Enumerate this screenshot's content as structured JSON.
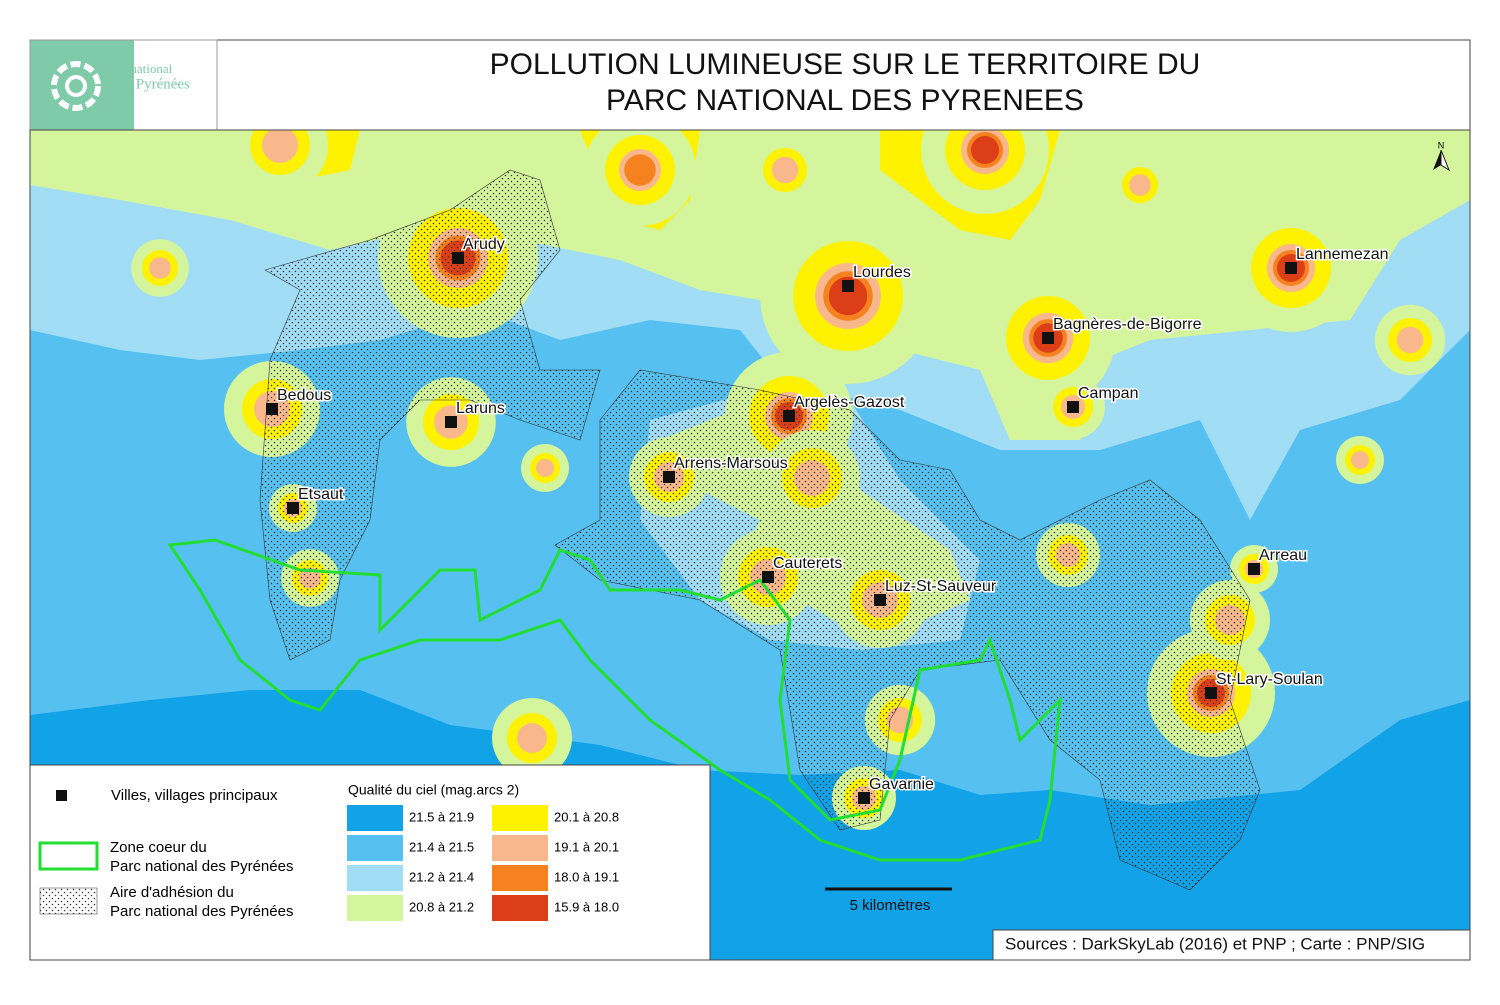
{
  "header": {
    "title_lines": [
      "POLLUTION LUMINEUSE SUR LE TERRITOIRE DU",
      "PARC NATIONAL DES PYRENEES"
    ],
    "logo": {
      "line1": "Parc national",
      "line2": "des Pyrénées"
    }
  },
  "map": {
    "north": "N",
    "towns": [
      "Arudy",
      "Lourdes",
      "Lannemezan",
      "Bagnères-de-Bigorre",
      "Campan",
      "Bedous",
      "Laruns",
      "Argelès-Gazost",
      "Arrens-Marsous",
      "Etsaut",
      "Cauterets",
      "Luz-St-Sauveur",
      "Arreau",
      "St-Lary-Soulan",
      "Gavarnie"
    ],
    "scale": "5 kilomètres",
    "sources": "Sources : DarkSkyLab (2016) et PNP ; Carte : PNP/SIG"
  },
  "legend": {
    "towns": "Villes, villages principaux",
    "core_zone": [
      "Zone coeur du",
      "Parc national des Pyrénées"
    ],
    "adhesion": [
      "Aire d'adhésion du",
      "Parc national des Pyrénées"
    ],
    "sky_quality": {
      "title": "Qualité du ciel (mag.arcs 2)",
      "classes": [
        {
          "label": "21.5 à 21.9",
          "color": "#12a2e8"
        },
        {
          "label": "21.4 à 21.5",
          "color": "#56c1f0"
        },
        {
          "label": "21.2 à 21.4",
          "color": "#a2ddf6"
        },
        {
          "label": "20.8 à 21.2",
          "color": "#d4f59c"
        },
        {
          "label": "20.1 à 20.8",
          "color": "#fff200"
        },
        {
          "label": "19.1 à 20.1",
          "color": "#f8b88c"
        },
        {
          "label": "18.0 à 19.1",
          "color": "#f5821f"
        },
        {
          "label": "15.9 à 18.0",
          "color": "#dc3f18"
        }
      ]
    }
  }
}
